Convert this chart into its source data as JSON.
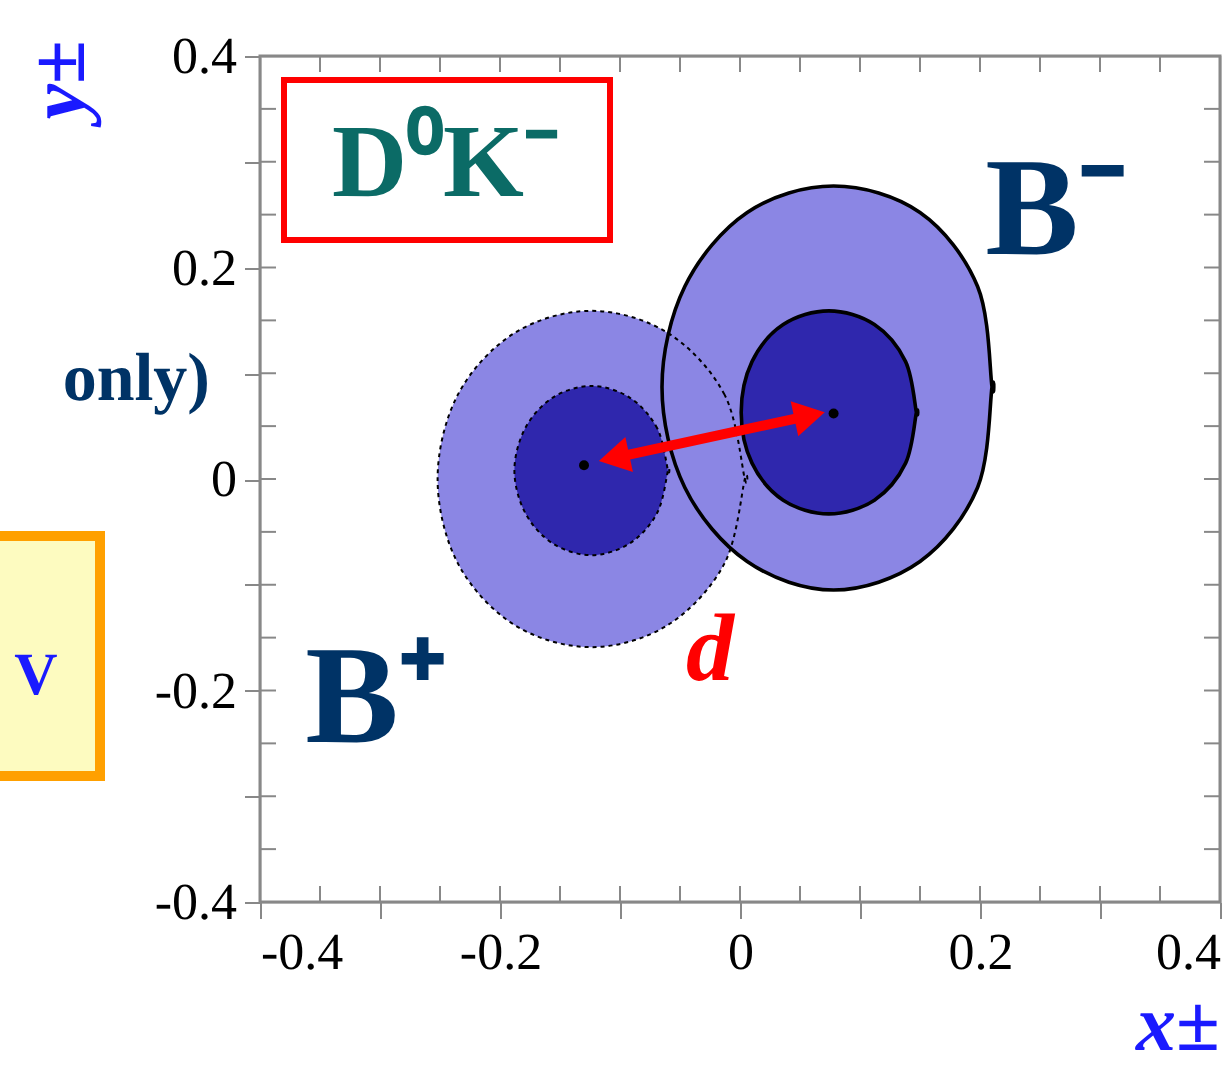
{
  "chart_data": {
    "type": "line",
    "title": "D⁰K⁻",
    "xlabel": "x±",
    "ylabel": "y±",
    "xlim": [
      -0.4,
      0.4
    ],
    "ylim": [
      -0.4,
      0.4
    ],
    "xticks": [
      -0.4,
      {
        "value": -0.35,
        "label": null
      },
      {
        "value": -0.3,
        "label": null
      },
      {
        "value": -0.25,
        "label": null
      },
      -0.2,
      {
        "value": -0.15,
        "label": null
      },
      {
        "value": -0.1,
        "label": null
      },
      {
        "value": -0.05,
        "label": null
      },
      0,
      {
        "value": 0.05,
        "label": null
      },
      {
        "value": 0.1,
        "label": null
      },
      {
        "value": 0.15,
        "label": null
      },
      0.2,
      {
        "value": 0.25,
        "label": null
      },
      {
        "value": 0.3,
        "label": null
      },
      {
        "value": 0.35,
        "label": null
      },
      0.4
    ],
    "yticks": [
      -0.4,
      {
        "value": -0.35,
        "label": null
      },
      {
        "value": -0.3,
        "label": null
      },
      {
        "value": -0.25,
        "label": null
      },
      -0.2,
      {
        "value": -0.15,
        "label": null
      },
      {
        "value": -0.1,
        "label": null
      },
      {
        "value": -0.05,
        "label": null
      },
      0,
      {
        "value": 0.05,
        "label": null
      },
      {
        "value": 0.1,
        "label": null
      },
      {
        "value": 0.15,
        "label": null
      },
      0.2,
      {
        "value": 0.25,
        "label": null
      },
      {
        "value": 0.3,
        "label": null
      },
      {
        "value": 0.35,
        "label": null
      },
      0.4
    ],
    "grid": false,
    "legend": false,
    "series": [
      {
        "type": "area",
        "color": "#8b86e4",
        "line_style": "dotted",
        "x": [
          0.004,
          -0.013,
          -0.06,
          -0.124,
          -0.188,
          -0.235,
          -0.252,
          -0.235,
          -0.188,
          -0.124,
          -0.06,
          -0.013,
          0.004
        ],
        "values": [
          0,
          0.08,
          0.138,
          0.159,
          0.138,
          0.08,
          0,
          -0.08,
          -0.138,
          -0.159,
          -0.138,
          -0.08,
          0
        ]
      },
      {
        "type": "area",
        "color": "#8b86e4",
        "line_style": "solid",
        "x": [
          0.21,
          0.198,
          0.15,
          0.078,
          0.006,
          -0.046,
          -0.065,
          -0.046,
          0.006,
          0.078,
          0.15,
          0.198,
          0.21
        ],
        "values": [
          0.087,
          0.182,
          0.252,
          0.277,
          0.252,
          0.182,
          0.087,
          -0.008,
          -0.078,
          -0.105,
          -0.078,
          -0.008,
          0.087
        ]
      },
      {
        "type": "area",
        "color": "#2f27ad",
        "line_style": "dotted",
        "x": [
          -0.06,
          -0.069,
          -0.092,
          -0.124,
          -0.156,
          -0.179,
          -0.188,
          -0.179,
          -0.156,
          -0.124,
          -0.092,
          -0.069,
          -0.06
        ],
        "values": [
          0.008,
          0.048,
          0.077,
          0.088,
          0.077,
          0.048,
          0.008,
          -0.032,
          -0.061,
          -0.072,
          -0.061,
          -0.032,
          0.008
        ]
      },
      {
        "type": "area",
        "color": "#2f27ad",
        "line_style": "solid",
        "x": [
          0.147,
          0.138,
          0.112,
          0.074,
          0.036,
          0.01,
          0.001,
          0.01,
          0.036,
          0.074,
          0.112,
          0.138,
          0.147
        ],
        "values": [
          0.063,
          0.111,
          0.146,
          0.159,
          0.146,
          0.111,
          0.063,
          0.015,
          -0.02,
          -0.033,
          -0.02,
          0.015,
          0.063
        ]
      },
      {
        "type": "scatter",
        "color": "#000000",
        "x": [
          -0.13,
          0.078
        ],
        "values": [
          0.013,
          0.062
        ]
      },
      {
        "color": "#ff0000",
        "marker": "triangle",
        "x": [
          -0.105,
          0.058
        ],
        "values": [
          0.02,
          0.06
        ]
      }
    ],
    "annotations": [
      "B⁻",
      "B⁺",
      "d",
      "only)",
      "V"
    ]
  }
}
